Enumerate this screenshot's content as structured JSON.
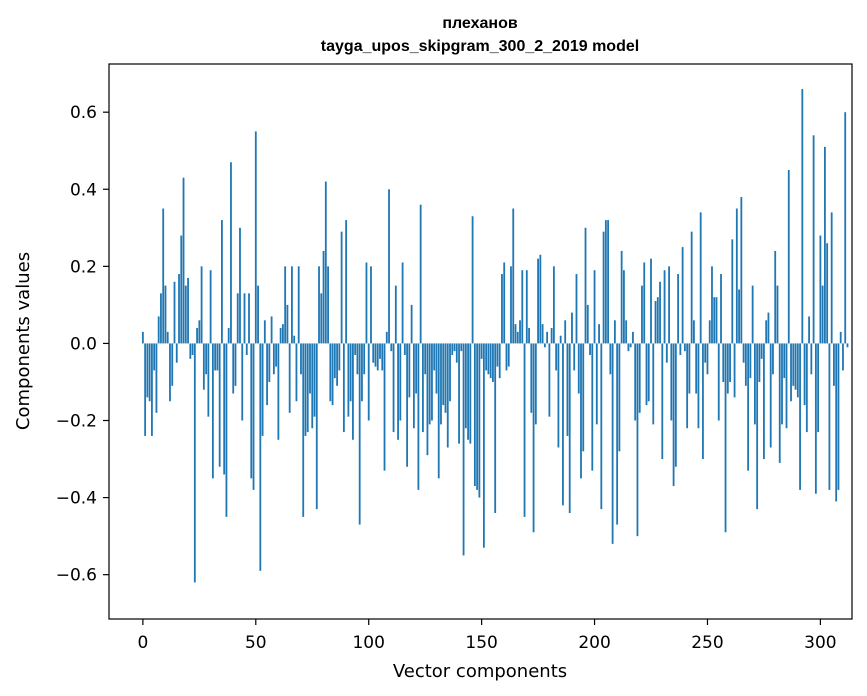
{
  "chart_data": {
    "type": "bar",
    "title_line1": "плеханов",
    "title_line2": "tayga_upos_skipgram_300_2_2019 model",
    "xlabel": "Vector components",
    "ylabel": "Components values",
    "xlim": [
      -15,
      314
    ],
    "ylim": [
      -0.715,
      0.725
    ],
    "xticks": [
      0,
      50,
      100,
      150,
      200,
      250,
      300
    ],
    "xtick_labels": [
      "0",
      "50",
      "100",
      "150",
      "200",
      "250",
      "300"
    ],
    "yticks": [
      -0.6,
      -0.4,
      -0.2,
      0.0,
      0.2,
      0.4,
      0.6
    ],
    "ytick_labels": [
      "−0.6",
      "−0.4",
      "−0.2",
      "0.0",
      "0.2",
      "0.4",
      "0.6"
    ],
    "grid": false,
    "bar_color": "#1f77b4",
    "values": [
      0.03,
      -0.24,
      -0.14,
      -0.15,
      -0.24,
      -0.07,
      -0.18,
      0.07,
      0.13,
      0.35,
      0.15,
      0.03,
      -0.15,
      -0.11,
      0.16,
      -0.05,
      0.18,
      0.28,
      0.43,
      0.15,
      0.17,
      -0.04,
      -0.03,
      -0.62,
      0.04,
      0.06,
      0.2,
      -0.12,
      -0.08,
      -0.19,
      0.19,
      -0.35,
      -0.07,
      -0.07,
      -0.32,
      0.32,
      -0.34,
      -0.45,
      0.04,
      0.47,
      -0.13,
      -0.11,
      0.13,
      0.3,
      -0.2,
      0.13,
      -0.03,
      0.13,
      -0.35,
      -0.38,
      0.55,
      0.15,
      -0.59,
      -0.24,
      0.06,
      -0.16,
      -0.1,
      0.07,
      -0.08,
      -0.06,
      -0.25,
      0.04,
      0.05,
      0.2,
      0.1,
      -0.18,
      0.2,
      0.02,
      -0.15,
      0.2,
      -0.08,
      -0.45,
      -0.24,
      -0.23,
      -0.13,
      -0.22,
      -0.19,
      -0.43,
      0.2,
      0.13,
      0.24,
      0.42,
      0.2,
      -0.15,
      -0.16,
      -0.09,
      -0.11,
      -0.07,
      0.29,
      -0.23,
      0.32,
      -0.19,
      -0.15,
      -0.25,
      -0.03,
      -0.08,
      -0.47,
      -0.15,
      -0.08,
      0.21,
      -0.2,
      0.2,
      -0.05,
      -0.06,
      -0.07,
      -0.04,
      -0.07,
      -0.33,
      0.03,
      0.4,
      -0.02,
      -0.23,
      0.15,
      -0.25,
      -0.2,
      0.21,
      -0.03,
      -0.32,
      -0.14,
      0.1,
      -0.22,
      -0.13,
      -0.38,
      0.36,
      -0.23,
      -0.08,
      -0.29,
      -0.21,
      -0.2,
      -0.07,
      -0.13,
      -0.35,
      -0.21,
      -0.16,
      -0.18,
      -0.27,
      -0.15,
      -0.03,
      -0.02,
      -0.05,
      -0.26,
      -0.02,
      -0.55,
      -0.22,
      -0.25,
      -0.26,
      0.33,
      -0.37,
      -0.38,
      -0.4,
      -0.04,
      -0.53,
      -0.07,
      -0.08,
      -0.09,
      -0.1,
      -0.44,
      -0.06,
      -0.09,
      0.18,
      0.21,
      -0.07,
      -0.06,
      0.2,
      0.35,
      0.05,
      0.03,
      0.06,
      0.19,
      -0.45,
      0.19,
      0.04,
      -0.18,
      -0.49,
      -0.21,
      0.22,
      0.23,
      0.05,
      -0.01,
      0.03,
      -0.19,
      0.04,
      0.2,
      -0.07,
      -0.27,
      0.02,
      -0.42,
      0.06,
      -0.24,
      -0.44,
      0.08,
      -0.07,
      0.18,
      -0.13,
      -0.35,
      -0.28,
      0.3,
      0.1,
      -0.03,
      -0.33,
      0.19,
      -0.21,
      0.05,
      -0.43,
      0.29,
      0.32,
      0.32,
      -0.08,
      -0.52,
      0.06,
      -0.47,
      -0.28,
      0.24,
      0.19,
      0.06,
      -0.02,
      -0.01,
      0.03,
      -0.2,
      -0.5,
      -0.18,
      0.15,
      0.21,
      -0.16,
      -0.15,
      0.22,
      -0.21,
      0.11,
      0.12,
      0.16,
      -0.3,
      0.19,
      -0.05,
      0.2,
      -0.2,
      -0.37,
      -0.32,
      0.18,
      -0.03,
      0.25,
      -0.02,
      -0.22,
      -0.13,
      0.29,
      0.06,
      -0.13,
      -0.22,
      0.34,
      -0.3,
      -0.05,
      -0.08,
      0.06,
      0.2,
      0.12,
      0.12,
      -0.2,
      0.18,
      -0.1,
      -0.49,
      -0.13,
      -0.1,
      0.27,
      -0.14,
      0.35,
      0.14,
      0.38,
      -0.05,
      -0.11,
      -0.33,
      -0.09,
      0.15,
      -0.21,
      -0.43,
      -0.1,
      -0.04,
      -0.3,
      0.06,
      0.08,
      -0.27,
      -0.08,
      0.24,
      0.15,
      -0.31,
      -0.21,
      -0.09,
      -0.22,
      0.45,
      -0.15,
      -0.11,
      -0.12,
      -0.14,
      -0.38,
      0.66,
      -0.16,
      -0.23,
      0.07,
      -0.08,
      0.54,
      -0.39,
      -0.23,
      0.28,
      0.15,
      0.51,
      0.26,
      -0.38,
      0.34,
      -0.11,
      -0.41,
      -0.38,
      0.03,
      -0.07,
      0.6,
      -0.01
    ]
  }
}
